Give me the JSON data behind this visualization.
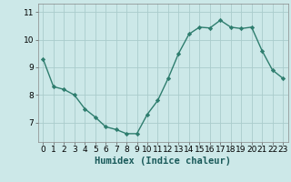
{
  "x": [
    0,
    1,
    2,
    3,
    4,
    5,
    6,
    7,
    8,
    9,
    10,
    11,
    12,
    13,
    14,
    15,
    16,
    17,
    18,
    19,
    20,
    21,
    22,
    23
  ],
  "y": [
    9.3,
    8.3,
    8.2,
    8.0,
    7.5,
    7.2,
    6.85,
    6.75,
    6.6,
    6.6,
    7.3,
    7.8,
    8.6,
    9.5,
    10.2,
    10.45,
    10.42,
    10.7,
    10.45,
    10.4,
    10.45,
    9.6,
    8.9,
    8.6
  ],
  "line_color": "#2e7d6e",
  "marker": "D",
  "marker_size": 2.2,
  "bg_color": "#cce8e8",
  "grid_color": "#aacccc",
  "xlabel": "Humidex (Indice chaleur)",
  "ylim": [
    6.3,
    11.3
  ],
  "xlim": [
    -0.5,
    23.5
  ],
  "yticks": [
    7,
    8,
    9,
    10,
    11
  ],
  "xticks": [
    0,
    1,
    2,
    3,
    4,
    5,
    6,
    7,
    8,
    9,
    10,
    11,
    12,
    13,
    14,
    15,
    16,
    17,
    18,
    19,
    20,
    21,
    22,
    23
  ],
  "xlabel_fontsize": 7.5,
  "tick_fontsize": 6.5,
  "line_width": 1.0
}
